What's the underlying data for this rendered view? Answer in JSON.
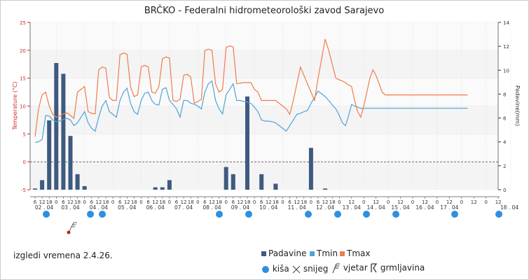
{
  "title": "BRČKO - Federalni hidrometeorološki zavod Sarajevo",
  "caption": "izgledi vremena 2.4.26.",
  "legend": {
    "padavine": "Padavine",
    "tmin": "Tmin",
    "tmax": "Tmax",
    "kisa": "kiša",
    "snijeg": "snijeg",
    "vjetar": "vjetar",
    "grmljavina": "grmljavina"
  },
  "colors": {
    "tmax": "#f07c4e",
    "tmin": "#4ea4d8",
    "bars": "#3e5a80",
    "rain_icon": "#2e8fe0",
    "wind_icon": "#cc2222",
    "axis_left": "#cc2a2a",
    "axis_right": "#333333"
  },
  "chart_data": {
    "type": "line",
    "ylabel": "Temperature (°C)",
    "y2label": "Padavine(mm)",
    "ylim": [
      -5,
      25
    ],
    "y2lim": [
      0,
      14
    ],
    "yticks": [
      "-5",
      "0",
      "5",
      "10",
      "15",
      "20",
      "25"
    ],
    "y2ticks": [
      "0",
      "2",
      "4",
      "6",
      "8",
      "10",
      "12",
      "14"
    ],
    "grid": true,
    "x_hour_labels": [
      "6",
      "12",
      "18",
      "0",
      "6",
      "12",
      "18",
      "0",
      "6",
      "12",
      "18",
      "0",
      "6",
      "12",
      "18",
      "0",
      "6",
      "12",
      "18",
      "0",
      "6",
      "12",
      "18",
      "0",
      "6",
      "12",
      "18",
      "0",
      "6",
      "12",
      "18",
      "0",
      "6",
      "12",
      "18",
      "0",
      "6",
      "12",
      "18",
      "0",
      "6",
      "12",
      "18",
      "0",
      "12",
      "0",
      "12",
      "0",
      "12",
      "0",
      "12",
      "0",
      "12",
      "0",
      "12",
      "0",
      "12",
      "0",
      "12",
      "0"
    ],
    "x_date_labels": [
      "02 . 04",
      "03 . 04",
      "04 . 04",
      "05 . 04",
      "06 . 04",
      "07 . 04",
      "08 . 04",
      "09 . 04",
      "10 . 04",
      "11 . 04",
      "12 . 04",
      "13 . 04",
      "14 . 04",
      "15 . 04",
      "16 . 04",
      "17 . 04",
      "18 . 04"
    ],
    "hours_since_start": [
      0,
      3,
      6,
      9,
      12,
      15,
      18,
      21,
      24,
      27,
      30,
      33,
      36,
      39,
      42,
      45,
      48,
      51,
      54,
      57,
      60,
      63,
      66,
      69,
      72,
      75,
      78,
      81,
      84,
      87,
      90,
      93,
      96,
      99,
      102,
      105,
      108,
      111,
      114,
      117,
      120,
      123,
      126,
      129,
      132,
      135,
      138,
      141,
      144,
      147,
      150,
      153,
      156,
      159,
      162,
      165,
      168,
      171,
      174,
      177,
      180,
      183,
      186,
      189,
      192,
      195,
      198,
      201,
      204,
      207,
      210,
      213,
      216,
      219,
      222,
      225,
      228,
      231,
      234,
      237,
      240,
      243,
      246,
      249,
      252,
      255,
      258,
      261,
      264,
      267,
      270,
      273,
      276,
      279,
      282,
      285,
      288,
      291,
      294,
      297,
      300,
      303,
      306,
      309,
      312,
      315,
      318,
      321,
      324,
      327,
      330,
      333,
      336,
      339,
      342,
      345,
      348,
      351,
      354,
      357,
      360,
      363,
      366,
      369,
      372,
      375,
      378,
      381,
      384
    ],
    "series": [
      {
        "name": "Tmax",
        "values": [
          4.5,
          9.5,
          12.0,
          12.5,
          10.0,
          8.5,
          8.0,
          8.2,
          8.6,
          8.8,
          8.3,
          7.8,
          12.5,
          13.0,
          13.5,
          9.0,
          8.7,
          8.6,
          16.5,
          17.0,
          16.8,
          11.5,
          11.0,
          11.0,
          19.2,
          19.5,
          19.3,
          13.5,
          11.7,
          12.0,
          17.0,
          17.3,
          17.0,
          12.5,
          12.3,
          13.5,
          18.5,
          18.8,
          18.6,
          11.0,
          10.8,
          11.2,
          15.5,
          15.7,
          15.2,
          10.5,
          10.8,
          11.2,
          20.0,
          20.2,
          20.0,
          14.0,
          12.5,
          13.0,
          20.5,
          20.8,
          20.6,
          14.0,
          14.1,
          14.2,
          14.2,
          14.2,
          13.0,
          12.5,
          11.0,
          11.0,
          11.0,
          11.0,
          11.0,
          10.5,
          10.0,
          9.5,
          8.5,
          11.0,
          14.0,
          17.0,
          15.5,
          14.0,
          12.5,
          11.0,
          15.0,
          18.5,
          22.0,
          20.0,
          17.5,
          15.0,
          14.7,
          14.5,
          14.2,
          13.8,
          13.5,
          11.0,
          9.0,
          8.0,
          10.0,
          12.5,
          15.0,
          16.5,
          15.5,
          14.0,
          12.5,
          12.0,
          12.0,
          12.0,
          12.0,
          12.0,
          12.0,
          12.0,
          12.0,
          12.0,
          12.0,
          12.0,
          12.0,
          12.0,
          12.0,
          12.0,
          12.0,
          12.0,
          12.0,
          12.0,
          12.0,
          12.0,
          12.0,
          12.0,
          12.0,
          12.0,
          12.0,
          12.0,
          12.0
        ]
      },
      {
        "name": "Tmin",
        "values": [
          3.5,
          3.6,
          4.0,
          8.3,
          8.2,
          7.5,
          7.2,
          7.3,
          7.6,
          7.8,
          7.5,
          6.5,
          7.0,
          8.0,
          9.0,
          7.0,
          6.0,
          5.5,
          8.0,
          10.0,
          11.0,
          9.0,
          8.5,
          8.0,
          11.0,
          12.5,
          13.2,
          10.5,
          9.0,
          8.5,
          11.0,
          12.3,
          12.5,
          11.0,
          10.3,
          10.2,
          13.0,
          13.3,
          11.0,
          10.3,
          9.5,
          8.0,
          11.0,
          11.0,
          10.5,
          10.3,
          10.0,
          9.5,
          12.5,
          14.0,
          14.5,
          11.0,
          9.5,
          8.6,
          12.0,
          13.0,
          14.0,
          11.0,
          11.0,
          10.8,
          10.7,
          10.5,
          9.8,
          9.0,
          7.5,
          7.3,
          7.3,
          7.2,
          7.0,
          6.5,
          6.0,
          5.5,
          6.5,
          7.5,
          8.5,
          8.7,
          9.0,
          9.2,
          10.5,
          11.5,
          12.7,
          12.2,
          11.7,
          11.0,
          10.2,
          9.5,
          8.3,
          7.0,
          6.5,
          8.2,
          10.3,
          10.0,
          9.8,
          9.6,
          9.6,
          9.6,
          9.6,
          9.6,
          9.6,
          9.6,
          9.6,
          9.6,
          9.6,
          9.6,
          9.6,
          9.6,
          9.6,
          9.6,
          9.6,
          9.6,
          9.6,
          9.6,
          9.6,
          9.6,
          9.6,
          9.6,
          9.6,
          9.6,
          9.6,
          9.6,
          9.6,
          9.6,
          9.6,
          9.6,
          9.6,
          9.6,
          9.6,
          9.6,
          9.6
        ]
      },
      {
        "name": "Padavine",
        "values": [
          0,
          0,
          0.1,
          0.8,
          5.8,
          10.6,
          9.7,
          4.5,
          1.3,
          0.3,
          0,
          0,
          0,
          0,
          0,
          0,
          0,
          0,
          0,
          0,
          0,
          0,
          0,
          0,
          0,
          0,
          0,
          0,
          0,
          0,
          0,
          0,
          0,
          0,
          0,
          0,
          0,
          0,
          0,
          0,
          0,
          0,
          0,
          0,
          0,
          0,
          0,
          0,
          0,
          0,
          0,
          0,
          0,
          0,
          0,
          0,
          0,
          0,
          0,
          0,
          0,
          0,
          0,
          0,
          0,
          0,
          0,
          0,
          0,
          0,
          0,
          0,
          0,
          0,
          0,
          0,
          0,
          0,
          0,
          0,
          0,
          0,
          0,
          0,
          0,
          0,
          0,
          0,
          0,
          0,
          0,
          0,
          0,
          0,
          0,
          0,
          0,
          0,
          0,
          0,
          0,
          0,
          0,
          0,
          0,
          0,
          0,
          0,
          0,
          0,
          0,
          0,
          0,
          0,
          0,
          0,
          0,
          0,
          0,
          0,
          0,
          0,
          0,
          0,
          0,
          0,
          0,
          0,
          0
        ]
      }
    ],
    "precip_bars": [
      {
        "x": 0,
        "v": 0.1
      },
      {
        "x": 1,
        "v": 0.8
      },
      {
        "x": 2,
        "v": 5.8
      },
      {
        "x": 3,
        "v": 10.6
      },
      {
        "x": 4,
        "v": 9.7
      },
      {
        "x": 5,
        "v": 4.5
      },
      {
        "x": 6,
        "v": 1.3
      },
      {
        "x": 7,
        "v": 0.3
      },
      {
        "x": 17,
        "v": 0.2
      },
      {
        "x": 18,
        "v": 0.2
      },
      {
        "x": 19,
        "v": 0.8
      },
      {
        "x": 27,
        "v": 1.9
      },
      {
        "x": 28,
        "v": 1.3
      },
      {
        "x": 30,
        "v": 7.8
      },
      {
        "x": 32,
        "v": 1.3
      },
      {
        "x": 34,
        "v": 0.5
      },
      {
        "x": 39,
        "v": 3.5
      },
      {
        "x": 41,
        "v": 0.1
      }
    ]
  }
}
